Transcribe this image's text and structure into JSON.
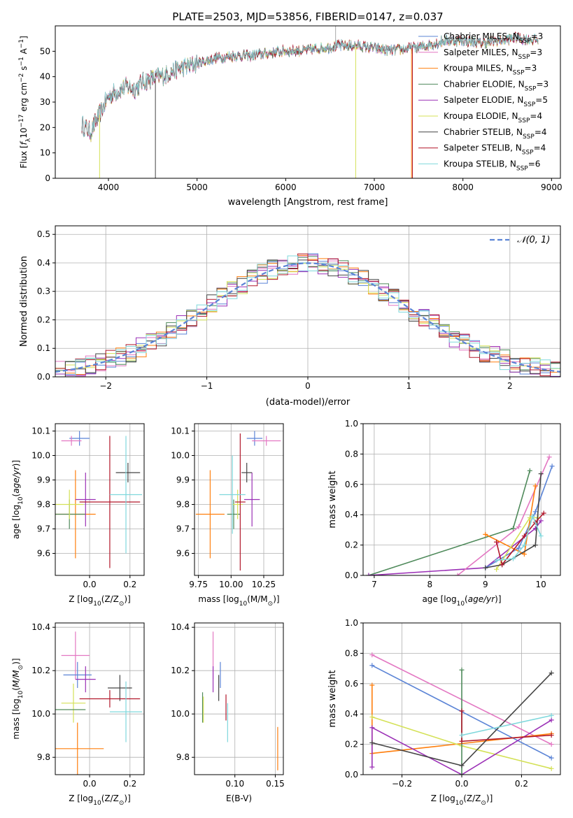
{
  "figure": {
    "title": "PLATE=2503, MJD=53856, FIBERID=0147, z=0.037"
  },
  "colors": {
    "chabrier_miles": "#5b84d6",
    "salpeter_miles": "#e377c2",
    "kroupa_miles": "#ff7f0e",
    "chabrier_elodie": "#4f8a5b",
    "salpeter_elodie": "#9b30b6",
    "kroupa_elodie": "#d4e157",
    "chabrier_stelib": "#444444",
    "salpeter_stelib": "#b2182b",
    "kroupa_stelib": "#7fd8dc",
    "grid": "#b0b0b0",
    "gaussian": "#5b84d6"
  },
  "chart_data": [
    {
      "id": "spectrum",
      "type": "line",
      "xlabel": "wavelength [Angstrom, rest frame]",
      "ylabel": "Flux [f_λ 10^-17 erg cm^-2 s^-1 A^-1]",
      "xlim": [
        3400,
        9100
      ],
      "ylim": [
        0,
        60
      ],
      "xticks": [
        4000,
        5000,
        6000,
        7000,
        8000,
        9000
      ],
      "yticks": [
        0,
        10,
        20,
        30,
        40,
        50
      ],
      "grid": false,
      "legend_position": "upper-right",
      "legend": [
        {
          "key": "chabrier_miles",
          "base": "Chabrier MILES, N",
          "sub": "SSP",
          "tail": "=3"
        },
        {
          "key": "salpeter_miles",
          "base": "Salpeter MILES, N",
          "sub": "SSP",
          "tail": "=3"
        },
        {
          "key": "kroupa_miles",
          "base": "Kroupa MILES, N",
          "sub": "SSP",
          "tail": "=3"
        },
        {
          "key": "chabrier_elodie",
          "base": "Chabrier ELODIE, N",
          "sub": "SSP",
          "tail": "=3"
        },
        {
          "key": "salpeter_elodie",
          "base": "Salpeter ELODIE, N",
          "sub": "SSP",
          "tail": "=5"
        },
        {
          "key": "kroupa_elodie",
          "base": "Kroupa ELODIE, N",
          "sub": "SSP",
          "tail": "=4"
        },
        {
          "key": "chabrier_stelib",
          "base": "Chabrier STELIB, N",
          "sub": "SSP",
          "tail": "=4"
        },
        {
          "key": "salpeter_stelib",
          "base": "Salpeter STELIB, N",
          "sub": "SSP",
          "tail": "=4"
        },
        {
          "key": "kroupa_stelib",
          "base": "Kroupa STELIB, N",
          "sub": "SSP",
          "tail": "=6"
        }
      ],
      "continuum": [
        [
          3700,
          21
        ],
        [
          3800,
          18
        ],
        [
          3900,
          25
        ],
        [
          4000,
          32
        ],
        [
          4100,
          34
        ],
        [
          4200,
          36
        ],
        [
          4300,
          35
        ],
        [
          4400,
          38
        ],
        [
          4600,
          40
        ],
        [
          4800,
          43
        ],
        [
          5000,
          45
        ],
        [
          5200,
          47
        ],
        [
          5400,
          48
        ],
        [
          5600,
          48
        ],
        [
          5800,
          49
        ],
        [
          6000,
          50
        ],
        [
          6200,
          50
        ],
        [
          6400,
          51
        ],
        [
          6600,
          52
        ],
        [
          6800,
          52
        ],
        [
          7000,
          51
        ],
        [
          7200,
          50
        ],
        [
          7400,
          51
        ],
        [
          7600,
          52
        ],
        [
          7800,
          54
        ],
        [
          8000,
          54
        ],
        [
          8200,
          53
        ],
        [
          8400,
          54
        ],
        [
          8600,
          55
        ],
        [
          8850,
          54
        ]
      ],
      "spikes": [
        {
          "x": 3900,
          "y": 0,
          "key": "kroupa_elodie"
        },
        {
          "x": 4530,
          "y": 0,
          "key": "chabrier_stelib"
        },
        {
          "x": 6790,
          "y": 0,
          "key": "kroupa_elodie"
        },
        {
          "x": 7420,
          "y": 0,
          "key": "kroupa_miles"
        },
        {
          "x": 7430,
          "y": 0,
          "key": "salpeter_stelib"
        }
      ]
    },
    {
      "id": "residuals",
      "type": "line",
      "xlabel": "(data-model)/error",
      "ylabel": "Normed distribution",
      "xlim": [
        -2.5,
        2.5
      ],
      "ylim": [
        0,
        0.53
      ],
      "xticks": [
        -2,
        -1,
        0,
        1,
        2
      ],
      "ytick_labels": [
        "0.0",
        "0.1",
        "0.2",
        "0.3",
        "0.4",
        "0.5"
      ],
      "xtick_labels": [
        "−2",
        "−1",
        "0",
        "1",
        "2"
      ],
      "grid": true,
      "legend_position": "upper-right",
      "legend_label": "𝒩(0, 1)"
    },
    {
      "id": "age_vs_Z",
      "type": "scatter",
      "xlabel_base": "Z [log",
      "xlabel_sub": "10",
      "xlabel_tail": "(Z/Z",
      "xlabel_end": ")]",
      "ylabel": "age  [log10(age/yr)]",
      "xlim": [
        -0.17,
        0.27
      ],
      "ylim": [
        9.51,
        10.13
      ],
      "xticks": [
        0.0,
        0.2
      ],
      "xtick_labels": [
        "0.0",
        "0.2"
      ],
      "yticks": [
        9.6,
        9.7,
        9.8,
        9.9,
        10.0,
        10.1
      ],
      "ytick_labels": [
        "9.6",
        "9.7",
        "9.8",
        "9.9",
        "10.0",
        "10.1"
      ],
      "grid": true,
      "points": [
        {
          "key": "chabrier_miles",
          "x": -0.05,
          "y": 10.07,
          "xerr": 0.05,
          "yerr": 0.03
        },
        {
          "key": "salpeter_miles",
          "x": -0.09,
          "y": 10.06,
          "xerr": 0.05,
          "yerr": 0.02
        },
        {
          "key": "kroupa_miles",
          "x": -0.07,
          "y": 9.76,
          "xerr": 0.1,
          "yerr": 0.18
        },
        {
          "key": "chabrier_elodie",
          "x": -0.1,
          "y": 9.76,
          "xerr": 0.08,
          "yerr": 0.06
        },
        {
          "key": "salpeter_elodie",
          "x": -0.02,
          "y": 9.82,
          "xerr": 0.05,
          "yerr": 0.11
        },
        {
          "key": "kroupa_elodie",
          "x": -0.1,
          "y": 9.8,
          "xerr": 0.07,
          "yerr": 0.06
        },
        {
          "key": "chabrier_stelib",
          "x": 0.19,
          "y": 9.93,
          "xerr": 0.06,
          "yerr": 0.04
        },
        {
          "key": "salpeter_stelib",
          "x": 0.1,
          "y": 9.81,
          "xerr": 0.15,
          "yerr": 0.27
        },
        {
          "key": "kroupa_stelib",
          "x": 0.18,
          "y": 9.84,
          "xerr": 0.08,
          "yerr": 0.24
        }
      ]
    },
    {
      "id": "age_vs_mass",
      "type": "scatter",
      "xlabel_base": "mass [log",
      "xlabel_sub": "10",
      "xlabel_tail": "(M/M",
      "xlabel_end": ")]",
      "xlim": [
        9.72,
        10.4
      ],
      "ylim": [
        9.51,
        10.13
      ],
      "xticks": [
        9.75,
        10.0,
        10.25
      ],
      "xtick_labels": [
        "9.75",
        "10.00",
        "10.25"
      ],
      "yticks": [
        9.6,
        9.7,
        9.8,
        9.9,
        10.0,
        10.1
      ],
      "ytick_labels": [
        "9.6",
        "9.7",
        "9.8",
        "9.9",
        "10.0",
        "10.1"
      ],
      "grid": true,
      "points": [
        {
          "key": "chabrier_miles",
          "x": 10.18,
          "y": 10.07,
          "xerr": 0.06,
          "yerr": 0.03
        },
        {
          "key": "salpeter_miles",
          "x": 10.27,
          "y": 10.06,
          "xerr": 0.11,
          "yerr": 0.02
        },
        {
          "key": "kroupa_miles",
          "x": 9.84,
          "y": 9.76,
          "xerr": 0.11,
          "yerr": 0.18
        },
        {
          "key": "chabrier_elodie",
          "x": 10.02,
          "y": 9.76,
          "xerr": 0.05,
          "yerr": 0.06
        },
        {
          "key": "salpeter_elodie",
          "x": 10.16,
          "y": 9.82,
          "xerr": 0.06,
          "yerr": 0.11
        },
        {
          "key": "kroupa_elodie",
          "x": 10.05,
          "y": 9.8,
          "xerr": 0.04,
          "yerr": 0.06
        },
        {
          "key": "chabrier_stelib",
          "x": 10.12,
          "y": 9.93,
          "xerr": 0.04,
          "yerr": 0.04
        },
        {
          "key": "salpeter_stelib",
          "x": 10.07,
          "y": 9.81,
          "xerr": 0.04,
          "yerr": 0.28
        },
        {
          "key": "kroupa_stelib",
          "x": 10.01,
          "y": 9.84,
          "xerr": 0.1,
          "yerr": 0.16
        }
      ]
    },
    {
      "id": "weight_vs_age",
      "type": "line",
      "xlabel": "age  [log10(age/yr)]",
      "ylabel": "mass weight",
      "xlim": [
        6.8,
        10.35
      ],
      "ylim": [
        0,
        1.0
      ],
      "xticks": [
        7,
        8,
        9,
        10
      ],
      "xtick_labels": [
        "7",
        "8",
        "9",
        "10"
      ],
      "yticks": [
        0,
        0.2,
        0.4,
        0.6,
        0.8,
        1.0
      ],
      "ytick_labels": [
        "0.0",
        "0.2",
        "0.4",
        "0.6",
        "0.8",
        "1.0"
      ],
      "grid": true,
      "series": [
        {
          "key": "chabrier_elodie",
          "points": [
            [
              6.9,
              0.0
            ],
            [
              9.5,
              0.31
            ],
            [
              9.8,
              0.69
            ]
          ]
        },
        {
          "key": "salpeter_elodie",
          "points": [
            [
              6.9,
              0.0
            ],
            [
              9.0,
              0.05
            ],
            [
              9.9,
              0.31
            ],
            [
              10.0,
              0.36
            ]
          ]
        },
        {
          "key": "salpeter_miles",
          "points": [
            [
              8.5,
              0.0
            ],
            [
              9.6,
              0.32
            ],
            [
              10.15,
              0.78
            ]
          ]
        },
        {
          "key": "chabrier_miles",
          "points": [
            [
              9.0,
              0.05
            ],
            [
              9.6,
              0.18
            ],
            [
              9.9,
              0.42
            ],
            [
              10.2,
              0.72
            ]
          ]
        },
        {
          "key": "kroupa_miles",
          "points": [
            [
              9.0,
              0.27
            ],
            [
              9.7,
              0.14
            ],
            [
              9.9,
              0.59
            ]
          ]
        },
        {
          "key": "kroupa_elodie",
          "points": [
            [
              9.2,
              0.04
            ],
            [
              9.8,
              0.38
            ],
            [
              9.95,
              0.38
            ]
          ]
        },
        {
          "key": "chabrier_stelib",
          "points": [
            [
              9.0,
              0.05
            ],
            [
              9.3,
              0.07
            ],
            [
              9.9,
              0.2
            ],
            [
              10.0,
              0.67
            ]
          ]
        },
        {
          "key": "salpeter_stelib",
          "points": [
            [
              9.2,
              0.22
            ],
            [
              9.3,
              0.07
            ],
            [
              9.7,
              0.26
            ],
            [
              9.9,
              0.35
            ],
            [
              10.05,
              0.41
            ]
          ]
        },
        {
          "key": "kroupa_stelib",
          "points": [
            [
              9.2,
              0.1
            ],
            [
              9.5,
              0.11
            ],
            [
              9.7,
              0.2
            ],
            [
              9.85,
              0.39
            ],
            [
              10.0,
              0.26
            ]
          ]
        }
      ]
    },
    {
      "id": "mass_vs_Z",
      "type": "scatter",
      "xlabel_base": "Z [log",
      "xlabel_sub": "10",
      "xlabel_tail": "(Z/Z",
      "xlabel_end": ")]",
      "ylabel": "mass [log10(M/M☉)]",
      "xlim": [
        -0.17,
        0.27
      ],
      "ylim": [
        9.72,
        10.42
      ],
      "xticks": [
        0.0,
        0.2
      ],
      "xtick_labels": [
        "0.0",
        "0.2"
      ],
      "yticks": [
        9.8,
        10.0,
        10.2,
        10.4
      ],
      "ytick_labels": [
        "9.8",
        "10.0",
        "10.2",
        "10.4"
      ],
      "grid": true,
      "points": [
        {
          "key": "salpeter_miles",
          "x": -0.07,
          "y": 10.27,
          "xerr": 0.07,
          "yerr": 0.11
        },
        {
          "key": "chabrier_miles",
          "x": -0.06,
          "y": 10.18,
          "xerr": 0.07,
          "yerr": 0.06
        },
        {
          "key": "salpeter_elodie",
          "x": -0.02,
          "y": 10.16,
          "xerr": 0.05,
          "yerr": 0.06
        },
        {
          "key": "kroupa_elodie",
          "x": -0.08,
          "y": 10.05,
          "xerr": 0.06,
          "yerr": 0.09
        },
        {
          "key": "chabrier_stelib",
          "x": 0.15,
          "y": 10.12,
          "xerr": 0.06,
          "yerr": 0.06
        },
        {
          "key": "salpeter_stelib",
          "x": 0.1,
          "y": 10.07,
          "xerr": 0.15,
          "yerr": 0.04
        },
        {
          "key": "chabrier_elodie",
          "x": -0.1,
          "y": 10.02,
          "xerr": 0.08,
          "yerr": 0.0
        },
        {
          "key": "kroupa_stelib",
          "x": 0.18,
          "y": 10.01,
          "xerr": 0.08,
          "yerr": 0.14
        },
        {
          "key": "kroupa_miles",
          "x": -0.06,
          "y": 9.84,
          "xerr": 0.13,
          "yerr": 0.12
        }
      ]
    },
    {
      "id": "mass_vs_ebv",
      "type": "scatter",
      "xlabel": "E(B-V)",
      "xlim": [
        0.05,
        0.16
      ],
      "ylim": [
        9.72,
        10.42
      ],
      "xticks": [
        0.1,
        0.15
      ],
      "xtick_labels": [
        "0.10",
        "0.15"
      ],
      "yticks": [
        9.8,
        10.0,
        10.2,
        10.4
      ],
      "ytick_labels": [
        "9.8",
        "10.0",
        "10.2",
        "10.4"
      ],
      "grid": true,
      "points": [
        {
          "key": "salpeter_miles",
          "x": 0.073,
          "y": 10.27,
          "xerr": 0,
          "yerr": 0.11
        },
        {
          "key": "chabrier_miles",
          "x": 0.082,
          "y": 10.18,
          "xerr": 0,
          "yerr": 0.06
        },
        {
          "key": "salpeter_elodie",
          "x": 0.073,
          "y": 10.16,
          "xerr": 0,
          "yerr": 0.06
        },
        {
          "key": "chabrier_elodie",
          "x": 0.06,
          "y": 10.03,
          "xerr": 0,
          "yerr": 0.07
        },
        {
          "key": "kroupa_elodie",
          "x": 0.061,
          "y": 10.02,
          "xerr": 0,
          "yerr": 0.06
        },
        {
          "key": "chabrier_stelib",
          "x": 0.08,
          "y": 10.12,
          "xerr": 0,
          "yerr": 0.06
        },
        {
          "key": "salpeter_stelib",
          "x": 0.089,
          "y": 10.03,
          "xerr": 0,
          "yerr": 0.06
        },
        {
          "key": "kroupa_stelib",
          "x": 0.091,
          "y": 9.96,
          "xerr": 0,
          "yerr": 0.09
        },
        {
          "key": "kroupa_miles",
          "x": 0.153,
          "y": 9.84,
          "xerr": 0,
          "yerr": 0.1
        }
      ]
    },
    {
      "id": "weight_vs_Z",
      "type": "line",
      "xlabel_base": "Z [log",
      "xlabel_sub": "10",
      "xlabel_tail": "(Z/Z",
      "xlabel_end": ")]",
      "ylabel": "mass weight",
      "xlim": [
        -0.33,
        0.33
      ],
      "ylim": [
        0,
        1.0
      ],
      "xticks": [
        -0.2,
        0.0,
        0.2
      ],
      "xtick_labels": [
        "−0.2",
        "0.0",
        "0.2"
      ],
      "yticks": [
        0,
        0.2,
        0.4,
        0.6,
        0.8,
        1.0
      ],
      "ytick_labels": [
        "0.0",
        "0.2",
        "0.4",
        "0.6",
        "0.8",
        "1.0"
      ],
      "grid": true,
      "series": [
        {
          "key": "salpeter_miles",
          "points": [
            [
              -0.3,
              0.79
            ],
            [
              0.3,
              0.2
            ]
          ]
        },
        {
          "key": "chabrier_miles",
          "points": [
            [
              -0.3,
              0.72
            ],
            [
              0.3,
              0.11
            ]
          ]
        },
        {
          "key": "kroupa_miles",
          "points": [
            [
              -0.3,
              0.59
            ],
            [
              -0.3,
              0.14
            ],
            [
              0.3,
              0.27
            ]
          ]
        },
        {
          "key": "kroupa_elodie",
          "points": [
            [
              -0.3,
              0.38
            ],
            [
              0.0,
              0.19
            ],
            [
              0.3,
              0.04
            ]
          ]
        },
        {
          "key": "salpeter_elodie",
          "points": [
            [
              -0.3,
              0.05
            ],
            [
              -0.3,
              0.31
            ],
            [
              0.0,
              0.0
            ],
            [
              0.3,
              0.36
            ]
          ]
        },
        {
          "key": "chabrier_elodie",
          "points": [
            [
              0.0,
              0.0
            ],
            [
              0.0,
              0.69
            ]
          ]
        },
        {
          "key": "chabrier_stelib",
          "points": [
            [
              -0.3,
              0.21
            ],
            [
              0.0,
              0.06
            ],
            [
              0.3,
              0.67
            ]
          ]
        },
        {
          "key": "salpeter_stelib",
          "points": [
            [
              0.0,
              0.42
            ],
            [
              0.0,
              0.22
            ],
            [
              0.3,
              0.26
            ]
          ]
        },
        {
          "key": "kroupa_stelib",
          "points": [
            [
              0.0,
              0.26
            ],
            [
              0.3,
              0.39
            ]
          ]
        }
      ]
    }
  ]
}
